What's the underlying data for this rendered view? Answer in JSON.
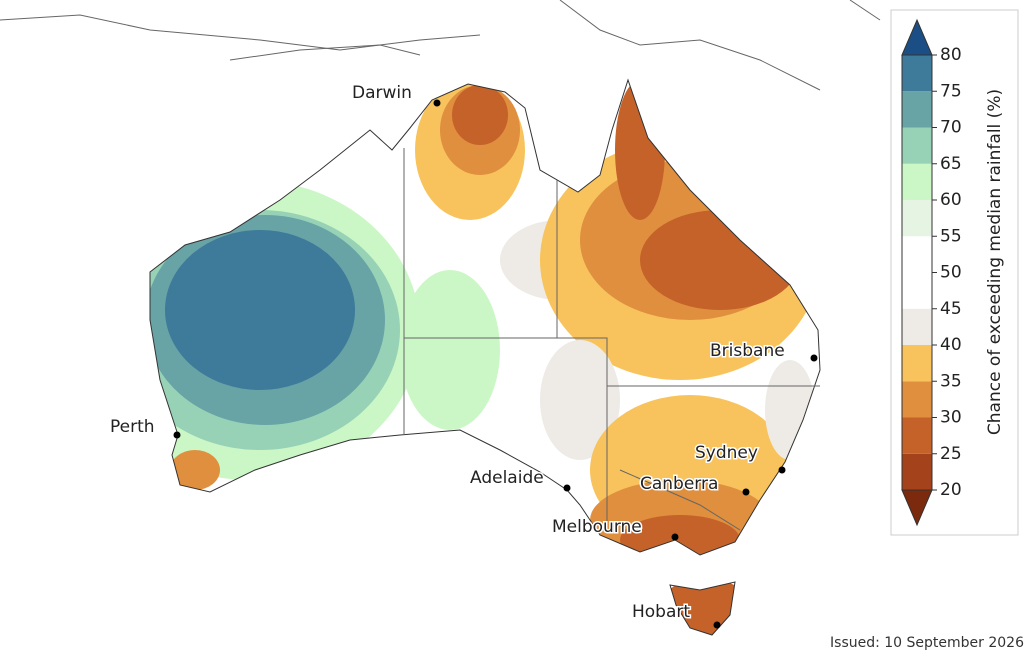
{
  "map": {
    "cities": [
      "Darwin",
      "Brisbane",
      "Perth",
      "Sydney",
      "Adelaide",
      "Canberra",
      "Melbourne",
      "Hobart"
    ]
  },
  "colorbar": {
    "label": "Chance of exceeding median rainfall (%)",
    "ticks": [
      20,
      25,
      30,
      35,
      40,
      45,
      50,
      55,
      60,
      65,
      70,
      75,
      80
    ],
    "colors": [
      "#7c2a0d",
      "#a4431b",
      "#c5622a",
      "#df8f3d",
      "#f8c35c",
      "#eeebe6",
      "#ffffff",
      "#ffffff",
      "#e6f5e3",
      "#cbf7c6",
      "#97d2b7",
      "#68a3a6",
      "#3e7a99",
      "#1b4e84"
    ]
  },
  "issued": "Issued: 10 September 2026"
}
